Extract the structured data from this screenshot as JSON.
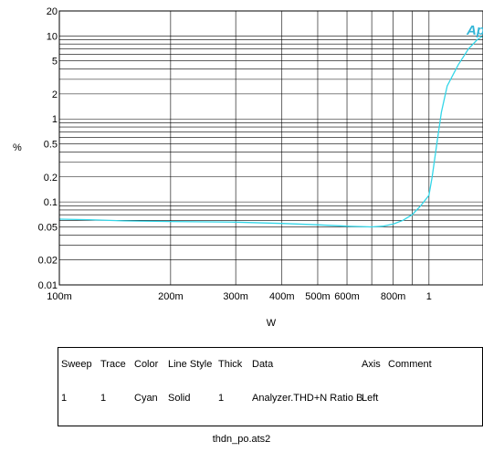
{
  "chart_data": {
    "type": "line",
    "title": "",
    "xlabel": "W",
    "ylabel": "%",
    "x_scale": "log",
    "y_scale": "log",
    "xlim": [
      0.1,
      1.4
    ],
    "ylim": [
      0.01,
      20
    ],
    "x_ticks": [
      {
        "value": 0.1,
        "label": "100m"
      },
      {
        "value": 0.2,
        "label": "200m"
      },
      {
        "value": 0.3,
        "label": "300m"
      },
      {
        "value": 0.4,
        "label": "400m"
      },
      {
        "value": 0.5,
        "label": "500m"
      },
      {
        "value": 0.6,
        "label": "600m"
      },
      {
        "value": 0.8,
        "label": "800m"
      },
      {
        "value": 1.0,
        "label": "1"
      }
    ],
    "y_ticks": [
      {
        "value": 20,
        "label": "20"
      },
      {
        "value": 10,
        "label": "10"
      },
      {
        "value": 5,
        "label": "5"
      },
      {
        "value": 2,
        "label": "2"
      },
      {
        "value": 1,
        "label": "1"
      },
      {
        "value": 0.5,
        "label": "0.5"
      },
      {
        "value": 0.2,
        "label": "0.2"
      },
      {
        "value": 0.1,
        "label": "0.1"
      },
      {
        "value": 0.05,
        "label": "0.05"
      },
      {
        "value": 0.02,
        "label": "0.02"
      },
      {
        "value": 0.01,
        "label": "0.01"
      }
    ],
    "grid": true,
    "logo_text": "Ap",
    "series": [
      {
        "color": "#33d6e8",
        "points": [
          [
            0.1,
            0.062
          ],
          [
            0.12,
            0.061
          ],
          [
            0.15,
            0.059
          ],
          [
            0.2,
            0.058
          ],
          [
            0.3,
            0.057
          ],
          [
            0.4,
            0.055
          ],
          [
            0.5,
            0.053
          ],
          [
            0.6,
            0.051
          ],
          [
            0.7,
            0.05
          ],
          [
            0.75,
            0.051
          ],
          [
            0.8,
            0.054
          ],
          [
            0.85,
            0.06
          ],
          [
            0.9,
            0.07
          ],
          [
            0.95,
            0.09
          ],
          [
            1.0,
            0.12
          ],
          [
            1.02,
            0.2
          ],
          [
            1.05,
            0.5
          ],
          [
            1.08,
            1.2
          ],
          [
            1.12,
            2.5
          ],
          [
            1.2,
            4.5
          ],
          [
            1.28,
            7.0
          ],
          [
            1.35,
            9.0
          ],
          [
            1.4,
            10.0
          ]
        ]
      }
    ]
  },
  "legend_table": {
    "headers": [
      "Sweep",
      "Trace",
      "Color",
      "Line Style",
      "Thick",
      "Data",
      "Axis",
      "Comment"
    ],
    "rows": [
      [
        "1",
        "1",
        "Cyan",
        "Solid",
        "1",
        "Analyzer.THD+N Ratio B",
        "Left",
        ""
      ]
    ]
  },
  "footer": "thdn_po.ats2"
}
